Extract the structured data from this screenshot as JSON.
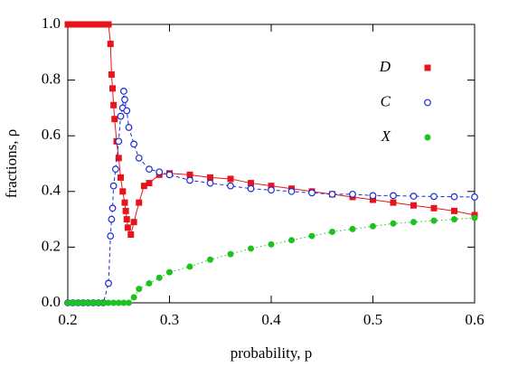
{
  "chart_data": {
    "type": "line",
    "xlabel": "probability, p",
    "ylabel": "fractions, ρ",
    "xlim": [
      0.2,
      0.6
    ],
    "xticks": [
      0.2,
      0.3,
      0.4,
      0.5,
      0.6
    ],
    "ylim": [
      0,
      1
    ],
    "yticks": [
      {
        "value": 0,
        "label": "0.0"
      },
      0.2,
      0.4,
      0.6,
      0.8,
      {
        "value": 1,
        "label": "1.0"
      }
    ],
    "legend": "upper right",
    "series": [
      {
        "name": "D",
        "color": "#e8141c",
        "marker": "square",
        "line": "solid",
        "x": [
          0.2,
          0.205,
          0.21,
          0.215,
          0.22,
          0.225,
          0.23,
          0.235,
          0.24,
          0.242,
          0.243,
          0.244,
          0.245,
          0.246,
          0.248,
          0.25,
          0.252,
          0.254,
          0.256,
          0.257,
          0.258,
          0.259,
          0.262,
          0.265,
          0.27,
          0.275,
          0.28,
          0.29,
          0.3,
          0.32,
          0.34,
          0.36,
          0.38,
          0.4,
          0.42,
          0.44,
          0.46,
          0.48,
          0.5,
          0.52,
          0.54,
          0.56,
          0.58,
          0.6
        ],
        "values": [
          1,
          1,
          1,
          1,
          1,
          1,
          1,
          1,
          1,
          0.93,
          0.82,
          0.77,
          0.71,
          0.66,
          0.58,
          0.52,
          0.45,
          0.4,
          0.36,
          0.33,
          0.3,
          0.27,
          0.245,
          0.29,
          0.36,
          0.42,
          0.43,
          0.46,
          0.465,
          0.46,
          0.45,
          0.445,
          0.43,
          0.42,
          0.41,
          0.4,
          0.39,
          0.38,
          0.37,
          0.36,
          0.35,
          0.34,
          0.33,
          0.315
        ]
      },
      {
        "name": "C",
        "color": "#1a2bd6",
        "marker": "circle-open",
        "line": "dashed",
        "x": [
          0.2,
          0.205,
          0.21,
          0.215,
          0.22,
          0.225,
          0.23,
          0.235,
          0.24,
          0.242,
          0.243,
          0.244,
          0.245,
          0.247,
          0.25,
          0.252,
          0.254,
          0.255,
          0.256,
          0.258,
          0.26,
          0.265,
          0.27,
          0.28,
          0.29,
          0.3,
          0.32,
          0.34,
          0.36,
          0.38,
          0.4,
          0.42,
          0.44,
          0.46,
          0.48,
          0.5,
          0.52,
          0.54,
          0.56,
          0.58,
          0.6
        ],
        "values": [
          0,
          0,
          0,
          0,
          0,
          0,
          0,
          0,
          0.07,
          0.24,
          0.3,
          0.34,
          0.42,
          0.48,
          0.58,
          0.67,
          0.7,
          0.76,
          0.73,
          0.69,
          0.63,
          0.57,
          0.52,
          0.48,
          0.47,
          0.46,
          0.44,
          0.43,
          0.42,
          0.41,
          0.405,
          0.4,
          0.395,
          0.39,
          0.39,
          0.385,
          0.385,
          0.383,
          0.382,
          0.381,
          0.38
        ]
      },
      {
        "name": "X",
        "color": "#1ec21e",
        "marker": "circle",
        "line": "dotted",
        "x": [
          0.2,
          0.205,
          0.21,
          0.215,
          0.22,
          0.225,
          0.23,
          0.235,
          0.24,
          0.245,
          0.25,
          0.255,
          0.26,
          0.265,
          0.27,
          0.28,
          0.29,
          0.3,
          0.32,
          0.34,
          0.36,
          0.38,
          0.4,
          0.42,
          0.44,
          0.46,
          0.48,
          0.5,
          0.52,
          0.54,
          0.56,
          0.58,
          0.6
        ],
        "values": [
          0,
          0,
          0,
          0,
          0,
          0,
          0,
          0,
          0,
          0,
          0,
          0,
          0,
          0.02,
          0.05,
          0.07,
          0.09,
          0.11,
          0.13,
          0.155,
          0.175,
          0.195,
          0.21,
          0.225,
          0.24,
          0.255,
          0.265,
          0.275,
          0.285,
          0.29,
          0.295,
          0.3,
          0.305
        ]
      }
    ]
  }
}
